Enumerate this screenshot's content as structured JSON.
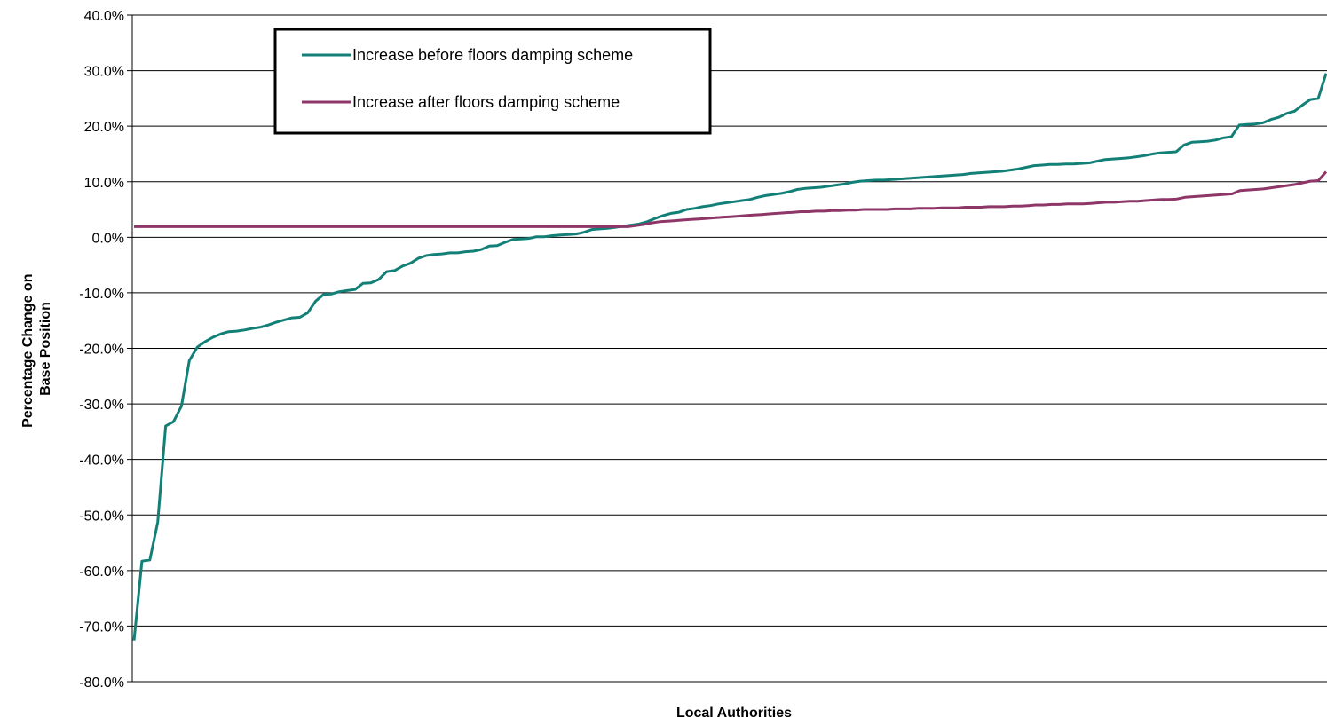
{
  "chart_data": {
    "type": "line",
    "xlabel": "Local Authorities",
    "ylabel_lines": [
      "Percentage Change on",
      "Base Position"
    ],
    "ylim": [
      -80,
      40
    ],
    "ytick_step": 10,
    "ytick_labels": [
      "40.0%",
      "30.0%",
      "20.0%",
      "10.0%",
      "0.0%",
      "-10.0%",
      "-20.0%",
      "-30.0%",
      "-40.0%",
      "-50.0%",
      "-60.0%",
      "-70.0%",
      "-80.0%"
    ],
    "grid": true,
    "legend_placement": "top-left",
    "series": [
      {
        "name": "Increase before floors damping scheme",
        "color": "#138078",
        "values": [
          -72.6,
          -58.3,
          -58.1,
          -51.3,
          -34.0,
          -33.2,
          -30.4,
          -22.2,
          -19.8,
          -18.8,
          -18.0,
          -17.4,
          -17.0,
          -16.9,
          -16.7,
          -16.4,
          -16.2,
          -15.8,
          -15.3,
          -14.9,
          -14.5,
          -14.4,
          -13.6,
          -11.5,
          -10.3,
          -10.2,
          -9.8,
          -9.6,
          -9.4,
          -8.3,
          -8.2,
          -7.6,
          -6.2,
          -6.0,
          -5.2,
          -4.7,
          -3.8,
          -3.3,
          -3.1,
          -3.0,
          -2.8,
          -2.8,
          -2.6,
          -2.5,
          -2.2,
          -1.6,
          -1.5,
          -0.9,
          -0.4,
          -0.3,
          -0.2,
          0.1,
          0.1,
          0.3,
          0.4,
          0.5,
          0.6,
          0.9,
          1.4,
          1.5,
          1.6,
          1.8,
          2.0,
          2.2,
          2.4,
          2.8,
          3.4,
          3.9,
          4.3,
          4.5,
          5.0,
          5.2,
          5.5,
          5.7,
          6.0,
          6.2,
          6.4,
          6.6,
          6.8,
          7.2,
          7.5,
          7.7,
          7.9,
          8.2,
          8.6,
          8.8,
          8.9,
          9.0,
          9.2,
          9.4,
          9.6,
          9.9,
          10.1,
          10.2,
          10.3,
          10.3,
          10.4,
          10.5,
          10.6,
          10.7,
          10.8,
          10.9,
          11.0,
          11.1,
          11.2,
          11.3,
          11.5,
          11.6,
          11.7,
          11.8,
          11.9,
          12.1,
          12.3,
          12.6,
          12.9,
          13.0,
          13.1,
          13.1,
          13.2,
          13.2,
          13.3,
          13.4,
          13.7,
          14.0,
          14.1,
          14.2,
          14.3,
          14.5,
          14.7,
          15.0,
          15.2,
          15.3,
          15.4,
          16.6,
          17.1,
          17.2,
          17.3,
          17.5,
          17.9,
          18.1,
          20.2,
          20.3,
          20.4,
          20.6,
          21.2,
          21.6,
          22.3,
          22.7,
          23.8,
          24.8,
          25.0,
          29.5
        ]
      },
      {
        "name": "Increase after floors damping scheme",
        "color": "#8e3668",
        "values": [
          1.9,
          1.9,
          1.9,
          1.9,
          1.9,
          1.9,
          1.9,
          1.9,
          1.9,
          1.9,
          1.9,
          1.9,
          1.9,
          1.9,
          1.9,
          1.9,
          1.9,
          1.9,
          1.9,
          1.9,
          1.9,
          1.9,
          1.9,
          1.9,
          1.9,
          1.9,
          1.9,
          1.9,
          1.9,
          1.9,
          1.9,
          1.9,
          1.9,
          1.9,
          1.9,
          1.9,
          1.9,
          1.9,
          1.9,
          1.9,
          1.9,
          1.9,
          1.9,
          1.9,
          1.9,
          1.9,
          1.9,
          1.9,
          1.9,
          1.9,
          1.9,
          1.9,
          1.9,
          1.9,
          1.9,
          1.9,
          1.9,
          1.9,
          1.9,
          1.9,
          1.9,
          1.9,
          1.9,
          1.9,
          2.1,
          2.3,
          2.6,
          2.8,
          2.9,
          3.0,
          3.1,
          3.2,
          3.3,
          3.4,
          3.5,
          3.6,
          3.7,
          3.8,
          3.9,
          4.0,
          4.1,
          4.2,
          4.3,
          4.4,
          4.5,
          4.6,
          4.6,
          4.7,
          4.7,
          4.8,
          4.8,
          4.9,
          4.9,
          5.0,
          5.0,
          5.0,
          5.0,
          5.1,
          5.1,
          5.1,
          5.2,
          5.2,
          5.2,
          5.3,
          5.3,
          5.3,
          5.4,
          5.4,
          5.4,
          5.5,
          5.5,
          5.5,
          5.6,
          5.6,
          5.7,
          5.8,
          5.8,
          5.9,
          5.9,
          6.0,
          6.0,
          6.0,
          6.1,
          6.2,
          6.3,
          6.3,
          6.4,
          6.5,
          6.5,
          6.6,
          6.7,
          6.8,
          6.8,
          6.9,
          7.2,
          7.3,
          7.4,
          7.5,
          7.6,
          7.7,
          7.8,
          8.4,
          8.5,
          8.6,
          8.7,
          8.9,
          9.1,
          9.3,
          9.5,
          9.8,
          10.1,
          10.2,
          11.8
        ]
      }
    ]
  }
}
